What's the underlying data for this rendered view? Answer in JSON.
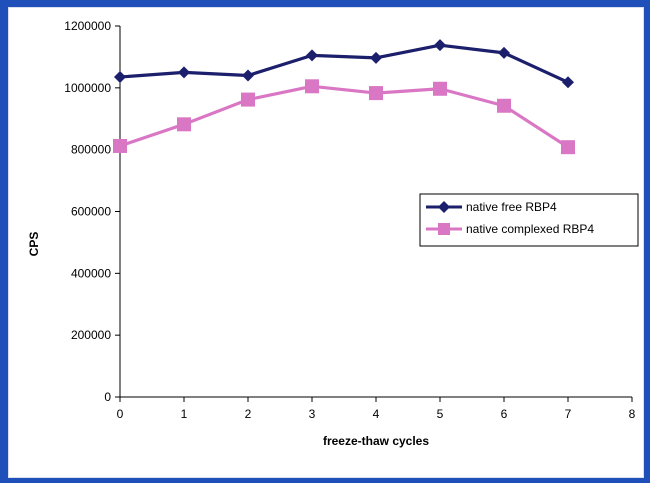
{
  "chart_data": {
    "type": "line",
    "title": "",
    "xlabel": "freeze-thaw cycles",
    "ylabel": "CPS",
    "xlim": [
      0,
      8
    ],
    "ylim": [
      0,
      1200000
    ],
    "xticks": [
      "0",
      "1",
      "2",
      "3",
      "4",
      "5",
      "6",
      "7",
      "8"
    ],
    "yticks": [
      "0",
      "200000",
      "400000",
      "600000",
      "800000",
      "1000000",
      "1200000"
    ],
    "grid": false,
    "legend_position": "right",
    "x": [
      0,
      1,
      2,
      3,
      4,
      5,
      6,
      7
    ],
    "series": [
      {
        "name": "native free RBP4",
        "color": "#1c1f6b",
        "marker": "diamond",
        "values": [
          1035000,
          1050000,
          1040000,
          1105000,
          1097000,
          1138000,
          1113000,
          1018000
        ]
      },
      {
        "name": "native complexed RBP4",
        "color": "#d977c5",
        "marker": "square",
        "values": [
          812000,
          882000,
          962000,
          1005000,
          983000,
          997000,
          942000,
          808000
        ]
      }
    ]
  }
}
